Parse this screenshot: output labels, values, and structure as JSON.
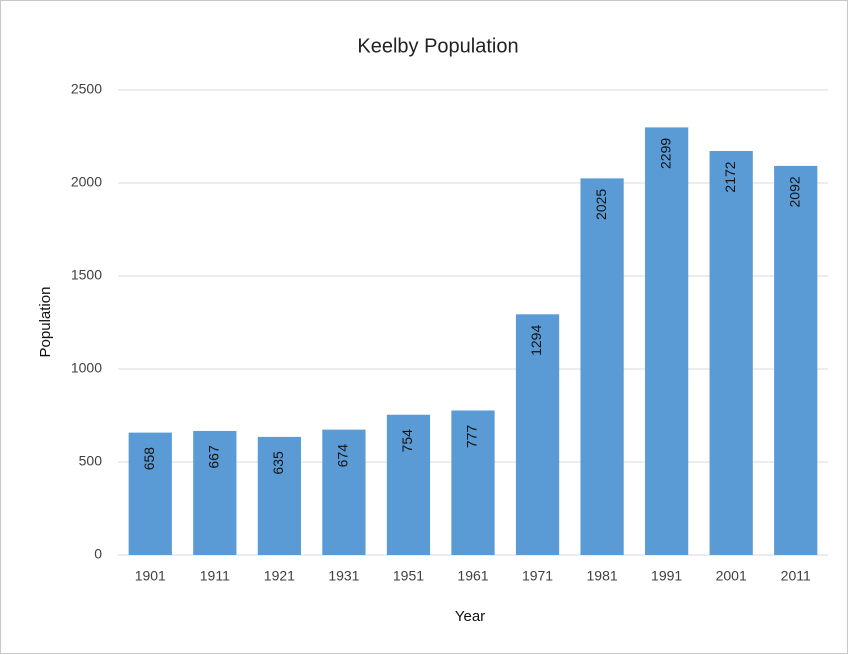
{
  "chart_data": {
    "type": "bar",
    "title": "Keelby Population",
    "x_label": "Year",
    "y_label": "Population",
    "categories": [
      "1901",
      "1911",
      "1921",
      "1931",
      "1951",
      "1961",
      "1971",
      "1981",
      "1991",
      "2001",
      "2011"
    ],
    "values": [
      658,
      667,
      635,
      674,
      754,
      777,
      1294,
      2025,
      2299,
      2172,
      2092
    ],
    "color": "#5b9bd5",
    "ylim": [
      0,
      2500
    ],
    "yticks": [
      0,
      500,
      1000,
      1500,
      2000,
      2500
    ],
    "grid": true
  }
}
